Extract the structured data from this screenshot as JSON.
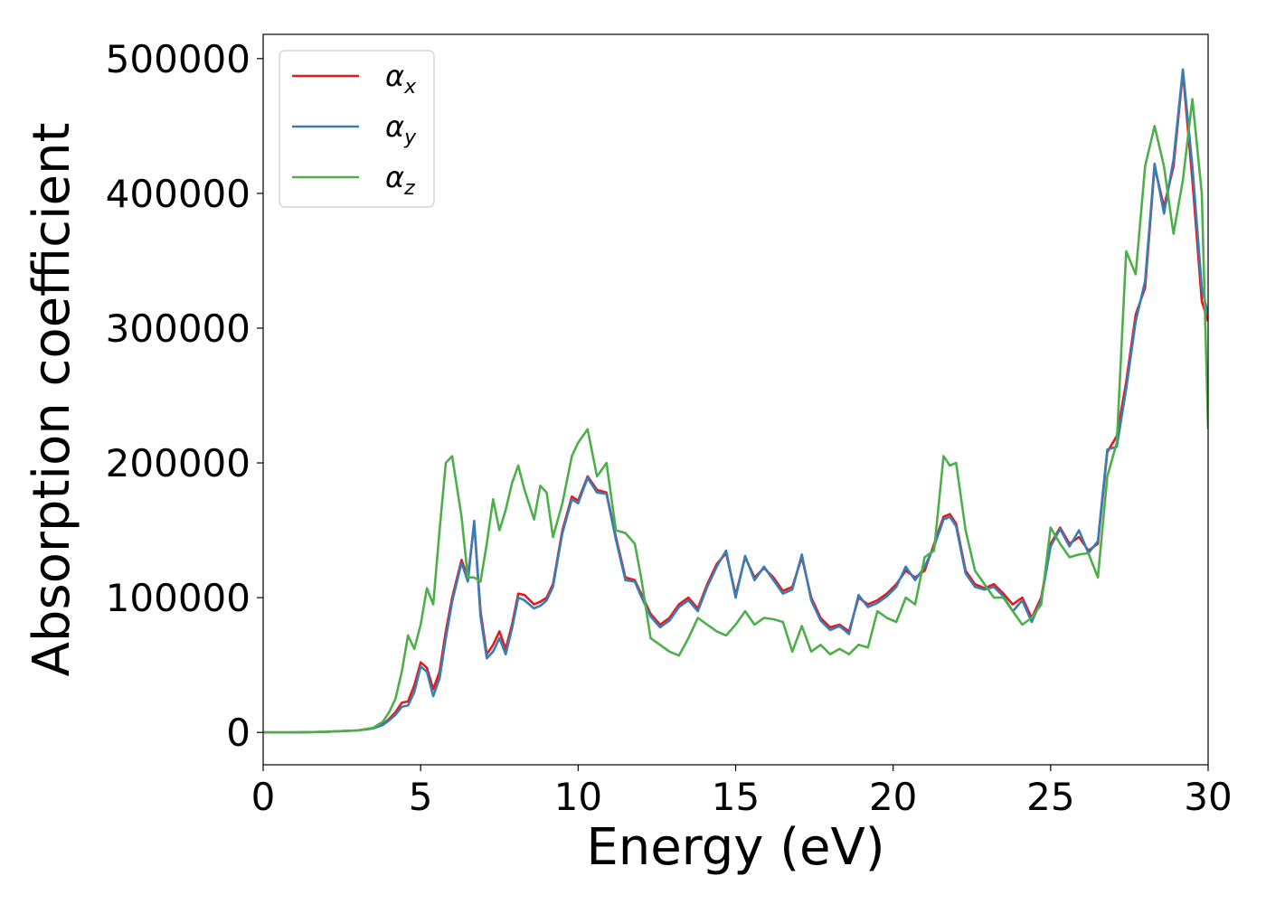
{
  "chart_data": {
    "type": "line",
    "title": "",
    "xlabel": "Energy (eV)",
    "ylabel": "Absorption coefficient",
    "xlim": [
      0,
      30
    ],
    "ylim": [
      -24000,
      518000
    ],
    "xticks": [
      0,
      5,
      10,
      15,
      20,
      25,
      30
    ],
    "yticks": [
      0,
      100000,
      200000,
      300000,
      400000,
      500000
    ],
    "grid": false,
    "legend_position": "top-left",
    "series": [
      {
        "name": "α",
        "sub": "x",
        "color": "#e41a1c",
        "x": [
          0,
          1,
          2,
          3,
          3.5,
          3.8,
          4,
          4.2,
          4.4,
          4.6,
          4.8,
          5,
          5.2,
          5.4,
          5.6,
          5.8,
          6,
          6.3,
          6.5,
          6.7,
          6.9,
          7.1,
          7.3,
          7.5,
          7.7,
          7.9,
          8.1,
          8.3,
          8.6,
          8.8,
          9,
          9.2,
          9.5,
          9.8,
          10,
          10.3,
          10.6,
          10.9,
          11.2,
          11.5,
          11.8,
          12,
          12.3,
          12.6,
          12.9,
          13.2,
          13.5,
          13.8,
          14.1,
          14.4,
          14.7,
          15,
          15.3,
          15.6,
          15.9,
          16.2,
          16.5,
          16.8,
          17.1,
          17.4,
          17.7,
          18,
          18.3,
          18.6,
          18.9,
          19.2,
          19.5,
          19.8,
          20.1,
          20.4,
          20.7,
          21,
          21.3,
          21.6,
          21.8,
          22,
          22.3,
          22.6,
          22.9,
          23.2,
          23.5,
          23.8,
          24.1,
          24.4,
          24.7,
          25,
          25.3,
          25.6,
          25.9,
          26.2,
          26.5,
          26.8,
          27.1,
          27.4,
          27.7,
          28,
          28.3,
          28.6,
          28.9,
          29.2,
          29.5,
          29.8,
          30
        ],
        "y": [
          0,
          0,
          500,
          1500,
          3000,
          6000,
          10000,
          15000,
          22000,
          23000,
          35000,
          52000,
          48000,
          32000,
          45000,
          75000,
          100000,
          128000,
          115000,
          155000,
          90000,
          58000,
          65000,
          75000,
          62000,
          80000,
          103000,
          102000,
          95000,
          97000,
          100000,
          110000,
          150000,
          175000,
          172000,
          190000,
          180000,
          178000,
          145000,
          115000,
          113000,
          103000,
          88000,
          80000,
          85000,
          95000,
          100000,
          92000,
          110000,
          125000,
          133000,
          102000,
          130000,
          115000,
          122000,
          115000,
          105000,
          108000,
          130000,
          100000,
          85000,
          78000,
          80000,
          75000,
          100000,
          95000,
          98000,
          103000,
          110000,
          120000,
          115000,
          120000,
          140000,
          160000,
          162000,
          155000,
          120000,
          110000,
          107000,
          110000,
          103000,
          95000,
          100000,
          85000,
          100000,
          140000,
          152000,
          140000,
          145000,
          135000,
          140000,
          208000,
          220000,
          260000,
          310000,
          330000,
          420000,
          390000,
          420000,
          490000,
          410000,
          320000,
          305000
        ]
      },
      {
        "name": "α",
        "sub": "y",
        "color": "#377eb8",
        "x": [
          0,
          1,
          2,
          3,
          3.5,
          3.8,
          4,
          4.2,
          4.4,
          4.6,
          4.8,
          5,
          5.2,
          5.4,
          5.6,
          5.8,
          6,
          6.3,
          6.5,
          6.7,
          6.9,
          7.1,
          7.3,
          7.5,
          7.7,
          7.9,
          8.1,
          8.3,
          8.6,
          8.8,
          9,
          9.2,
          9.5,
          9.8,
          10,
          10.3,
          10.6,
          10.9,
          11.2,
          11.5,
          11.8,
          12,
          12.3,
          12.6,
          12.9,
          13.2,
          13.5,
          13.8,
          14.1,
          14.4,
          14.7,
          15,
          15.3,
          15.6,
          15.9,
          16.2,
          16.5,
          16.8,
          17.1,
          17.4,
          17.7,
          18,
          18.3,
          18.6,
          18.9,
          19.2,
          19.5,
          19.8,
          20.1,
          20.4,
          20.7,
          21,
          21.3,
          21.6,
          21.8,
          22,
          22.3,
          22.6,
          22.9,
          23.2,
          23.5,
          23.8,
          24.1,
          24.4,
          24.7,
          25,
          25.3,
          25.6,
          25.9,
          26.2,
          26.5,
          26.8,
          27.1,
          27.4,
          27.7,
          28,
          28.3,
          28.6,
          28.9,
          29.2,
          29.5,
          29.8,
          30
        ],
        "y": [
          0,
          0,
          500,
          1500,
          3000,
          5500,
          9000,
          13000,
          19000,
          20000,
          30000,
          49000,
          45000,
          27000,
          40000,
          70000,
          97000,
          126000,
          112000,
          157000,
          86000,
          55000,
          60000,
          70000,
          58000,
          77000,
          100000,
          98000,
          92000,
          94000,
          98000,
          108000,
          148000,
          173000,
          170000,
          189000,
          178000,
          177000,
          143000,
          113000,
          112000,
          101000,
          86000,
          78000,
          83000,
          93000,
          98000,
          90000,
          108000,
          123000,
          135000,
          100000,
          131000,
          113000,
          123000,
          113000,
          103000,
          106000,
          132000,
          98000,
          83000,
          76000,
          79000,
          73000,
          102000,
          93000,
          96000,
          101000,
          108000,
          123000,
          113000,
          123000,
          138000,
          158000,
          160000,
          153000,
          118000,
          108000,
          106000,
          108000,
          101000,
          90000,
          98000,
          82000,
          98000,
          138000,
          151000,
          138000,
          150000,
          133000,
          142000,
          210000,
          212000,
          255000,
          305000,
          335000,
          422000,
          385000,
          425000,
          492000,
          420000,
          330000,
          310000
        ]
      },
      {
        "name": "α",
        "sub": "z",
        "color": "#4daf4a",
        "x": [
          0,
          1,
          2,
          3,
          3.5,
          3.8,
          4,
          4.2,
          4.4,
          4.6,
          4.8,
          5,
          5.2,
          5.4,
          5.6,
          5.8,
          6,
          6.3,
          6.5,
          6.7,
          6.9,
          7.1,
          7.3,
          7.5,
          7.7,
          7.9,
          8.1,
          8.3,
          8.6,
          8.8,
          9,
          9.2,
          9.5,
          9.8,
          10,
          10.3,
          10.6,
          10.9,
          11.2,
          11.5,
          11.8,
          12,
          12.3,
          12.6,
          12.9,
          13.2,
          13.5,
          13.8,
          14.1,
          14.4,
          14.7,
          15,
          15.3,
          15.6,
          15.9,
          16.2,
          16.5,
          16.8,
          17.1,
          17.4,
          17.7,
          18,
          18.3,
          18.6,
          18.9,
          19.2,
          19.5,
          19.8,
          20.1,
          20.4,
          20.7,
          21,
          21.3,
          21.6,
          21.8,
          22,
          22.3,
          22.6,
          22.9,
          23.2,
          23.5,
          23.8,
          24.1,
          24.4,
          24.7,
          25,
          25.3,
          25.6,
          25.9,
          26.2,
          26.5,
          26.8,
          27.1,
          27.4,
          27.7,
          28,
          28.3,
          28.6,
          28.9,
          29.2,
          29.5,
          29.8,
          30
        ],
        "y": [
          0,
          0,
          500,
          1500,
          3500,
          8000,
          15000,
          25000,
          45000,
          72000,
          62000,
          80000,
          107000,
          95000,
          150000,
          200000,
          205000,
          160000,
          115000,
          115000,
          112000,
          140000,
          173000,
          150000,
          165000,
          185000,
          198000,
          180000,
          158000,
          183000,
          178000,
          145000,
          170000,
          205000,
          215000,
          225000,
          190000,
          200000,
          150000,
          148000,
          140000,
          115000,
          70000,
          65000,
          60000,
          57000,
          70000,
          85000,
          80000,
          75000,
          72000,
          80000,
          90000,
          80000,
          85000,
          84000,
          82000,
          60000,
          79000,
          60000,
          65000,
          58000,
          62000,
          58000,
          65000,
          63000,
          90000,
          85000,
          82000,
          100000,
          95000,
          130000,
          135000,
          205000,
          198000,
          200000,
          150000,
          120000,
          110000,
          100000,
          100000,
          90000,
          80000,
          85000,
          95000,
          152000,
          140000,
          130000,
          132000,
          133000,
          115000,
          190000,
          215000,
          357000,
          340000,
          420000,
          450000,
          420000,
          370000,
          410000,
          470000,
          400000,
          225000
        ]
      }
    ]
  }
}
